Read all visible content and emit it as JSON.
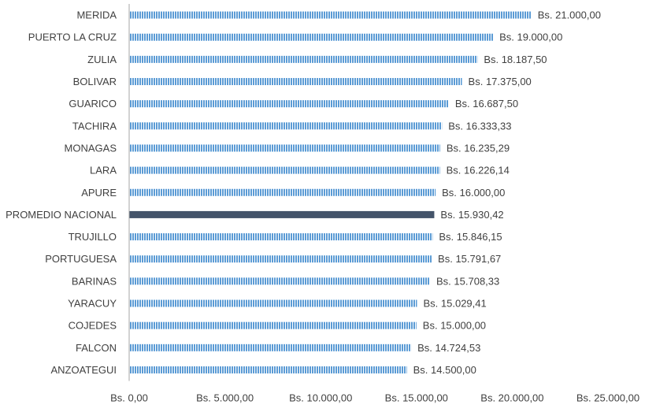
{
  "chart_data": {
    "type": "bar",
    "orientation": "horizontal",
    "title": "",
    "xlabel": "",
    "ylabel": "",
    "grid": false,
    "legend": "none",
    "xlim": [
      0,
      25000
    ],
    "x_ticks": [
      0,
      5000,
      10000,
      15000,
      20000,
      25000
    ],
    "x_tick_labels": [
      "Bs.  0,00",
      "Bs.  5.000,00",
      "Bs.  10.000,00",
      "Bs.  15.000,00",
      "Bs.  20.000,00",
      "Bs.  25.000,00"
    ],
    "categories": [
      "MERIDA",
      "PUERTO LA CRUZ",
      "ZULIA",
      "BOLIVAR",
      "GUARICO",
      "TACHIRA",
      "MONAGAS",
      "LARA",
      "APURE",
      "PROMEDIO NACIONAL",
      "TRUJILLO",
      "PORTUGUESA",
      "BARINAS",
      "YARACUY",
      "COJEDES",
      "FALCON",
      "ANZOATEGUI"
    ],
    "values": [
      21000.0,
      19000.0,
      18187.5,
      17375.0,
      16687.5,
      16333.33,
      16235.29,
      16226.14,
      16000.0,
      15930.42,
      15846.15,
      15791.67,
      15708.33,
      15029.41,
      15000.0,
      14724.53,
      14500.0
    ],
    "value_labels": [
      "Bs.  21.000,00",
      "Bs.  19.000,00",
      "Bs.  18.187,50",
      "Bs.  17.375,00",
      "Bs.  16.687,50",
      "Bs.  16.333,33",
      "Bs.  16.235,29",
      "Bs.  16.226,14",
      "Bs.  16.000,00",
      "Bs.  15.930,42",
      "Bs.  15.846,15",
      "Bs.  15.791,67",
      "Bs.  15.708,33",
      "Bs.  15.029,41",
      "Bs.  15.000,00",
      "Bs.  14.724,53",
      "Bs.  14.500,00"
    ],
    "highlight_category": "PROMEDIO NACIONAL",
    "colors": {
      "bar": "#5b9bd5",
      "bar_stripe": "#ffffff",
      "highlight": "#44546a",
      "axis": "#a6a6a6",
      "text": "#404040"
    }
  }
}
